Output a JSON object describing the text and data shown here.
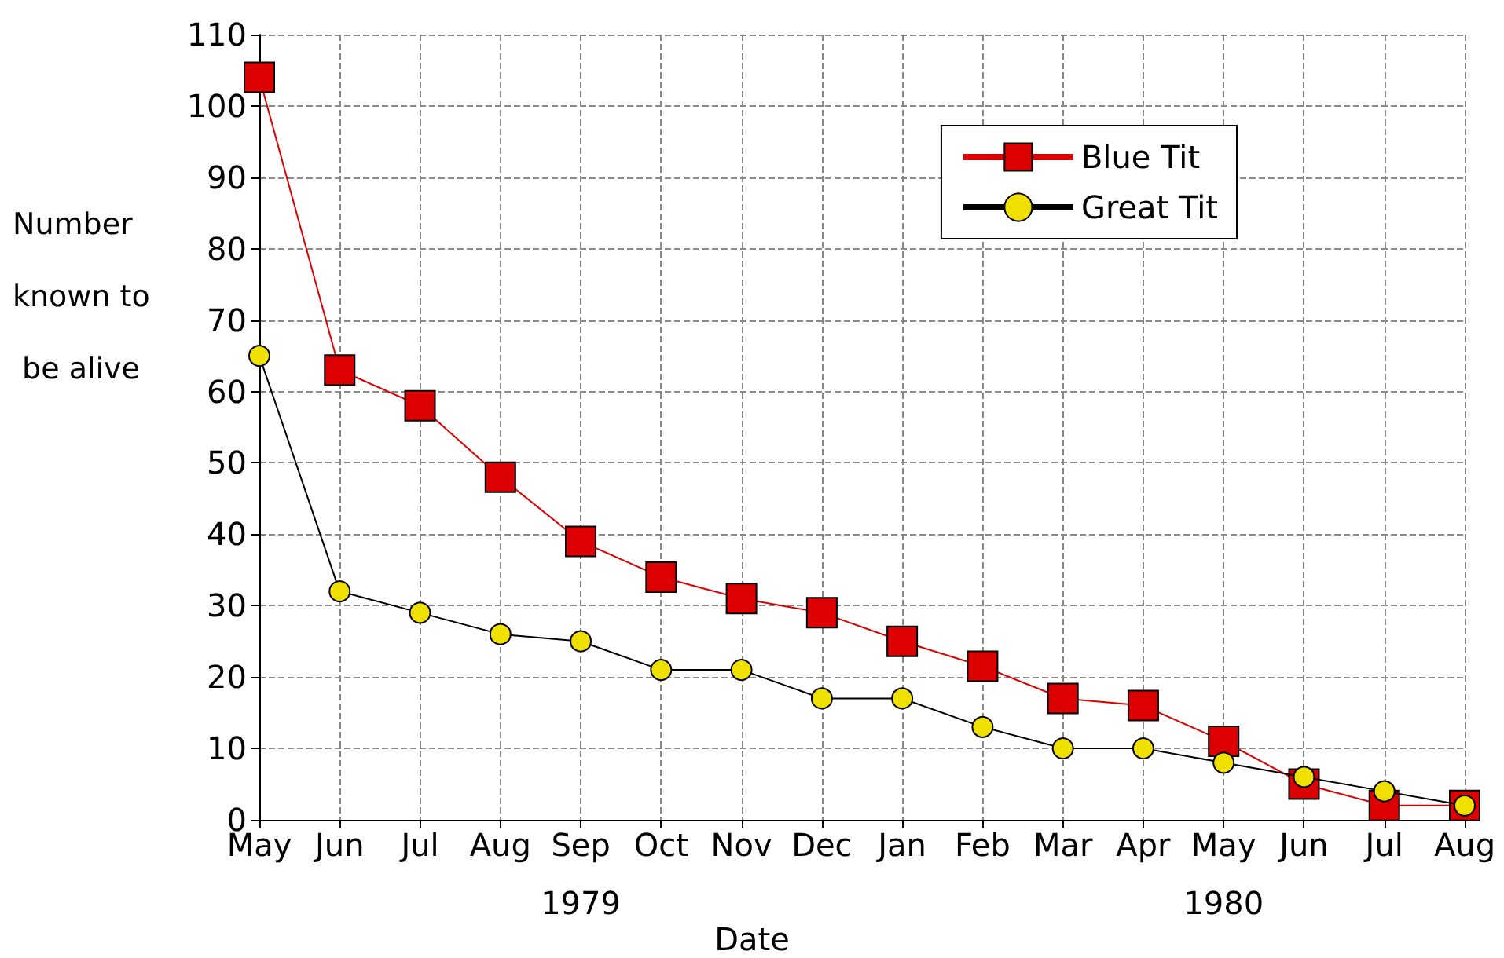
{
  "chart_data": {
    "type": "line",
    "xlabel": "Date",
    "ylabel": "Number known to be alive",
    "categories": [
      "May",
      "Jun",
      "Jul",
      "Aug",
      "Sep",
      "Oct",
      "Nov",
      "Dec",
      "Jan",
      "Feb",
      "Mar",
      "Apr",
      "May",
      "Jun",
      "Jul",
      "Aug"
    ],
    "series": [
      {
        "name": "Blue Tit",
        "color": "#dd0000",
        "marker": "square",
        "values": [
          104,
          63,
          58,
          48,
          39,
          34,
          31,
          29,
          25,
          21.5,
          17,
          16,
          11,
          5,
          2,
          2
        ]
      },
      {
        "name": "Great Tit",
        "color": "#000000",
        "marker": "circle",
        "values": [
          65,
          32,
          29,
          26,
          25,
          21,
          21,
          17,
          17,
          13,
          10,
          10,
          8,
          6,
          4,
          2
        ]
      }
    ],
    "annotations": [
      "1979",
      "1980"
    ],
    "ylim": [
      0,
      110
    ],
    "yticks": [
      0,
      10,
      20,
      30,
      40,
      50,
      60,
      70,
      80,
      90,
      100,
      110
    ],
    "grid": true,
    "legend": "top right",
    "line_style": "solid"
  }
}
